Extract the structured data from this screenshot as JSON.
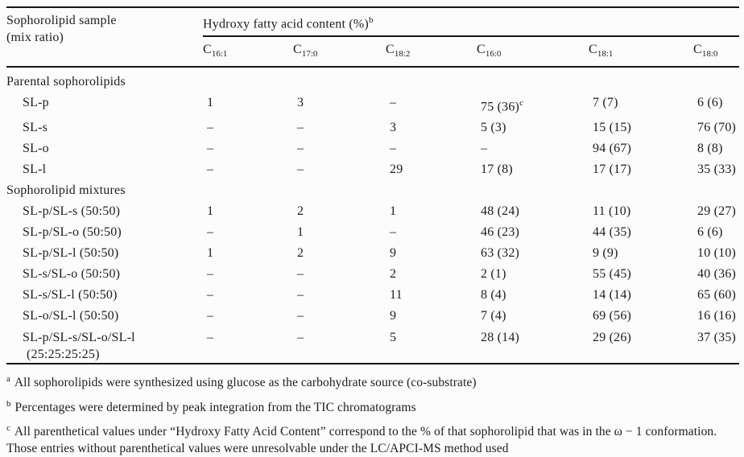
{
  "table": {
    "sample_header": [
      "Sophorolipid sample",
      "(mix ratio)"
    ],
    "group_header": "Hydroxy fatty acid content (%)",
    "group_header_sup": "b",
    "columns": [
      {
        "base": "C",
        "sub": "16:1"
      },
      {
        "base": "C",
        "sub": "17:0"
      },
      {
        "base": "C",
        "sub": "18:2"
      },
      {
        "base": "C",
        "sub": "16:0"
      },
      {
        "base": "C",
        "sub": "18:1"
      },
      {
        "base": "C",
        "sub": "18:0"
      }
    ],
    "sections": [
      {
        "label": "Parental sophorolipids",
        "rows": [
          {
            "sample": "SL-p",
            "values": [
              "1",
              "3",
              "–",
              "75 (36)^c",
              "7 (7)",
              "6 (6)"
            ]
          },
          {
            "sample": "SL-s",
            "values": [
              "–",
              "–",
              "3",
              "5 (3)",
              "15 (15)",
              "76 (70)"
            ]
          },
          {
            "sample": "SL-o",
            "values": [
              "–",
              "–",
              "–",
              "–",
              "94 (67)",
              "8 (8)"
            ]
          },
          {
            "sample": "SL-l",
            "values": [
              "–",
              "–",
              "29",
              "17 (8)",
              "17 (17)",
              "35 (33)"
            ]
          }
        ]
      },
      {
        "label": "Sophorolipid mixtures",
        "rows": [
          {
            "sample": "SL-p/SL-s (50:50)",
            "values": [
              "1",
              "2",
              "1",
              "48 (24)",
              "11 (10)",
              "29 (27)"
            ]
          },
          {
            "sample": "SL-p/SL-o (50:50)",
            "values": [
              "–",
              "1",
              "–",
              "46 (23)",
              "44 (35)",
              "6 (6)"
            ]
          },
          {
            "sample": "SL-p/SL-l (50:50)",
            "values": [
              "1",
              "2",
              "9",
              "63 (32)",
              "9 (9)",
              "10 (10)"
            ]
          },
          {
            "sample": "SL-s/SL-o (50:50)",
            "values": [
              "–",
              "–",
              "2",
              "2 (1)",
              "55 (45)",
              "40 (36)"
            ]
          },
          {
            "sample": "SL-s/SL-l (50:50)",
            "values": [
              "–",
              "–",
              "11",
              "8 (4)",
              "14 (14)",
              "65 (60)"
            ]
          },
          {
            "sample": "SL-o/SL-l (50:50)",
            "values": [
              "–",
              "–",
              "9",
              "7 (4)",
              "69 (56)",
              "16 (16)"
            ]
          },
          {
            "sample": "SL-p/SL-s/SL-o/SL-l",
            "sample_line2": "(25:25:25:25)",
            "values": [
              "–",
              "–",
              "5",
              "28 (14)",
              "29 (26)",
              "37 (35)"
            ]
          }
        ]
      }
    ]
  },
  "footnotes": [
    {
      "marker": "a",
      "text": "All sophorolipids were synthesized using glucose as the carbohydrate source (co-substrate)"
    },
    {
      "marker": "b",
      "text": "Percentages were determined by peak integration from the TIC chromatograms"
    },
    {
      "marker": "c",
      "text": "All parenthetical values under “Hydroxy Fatty Acid Content” correspond to the % of that sophorolipid that was in the ω − 1 conformation. Those entries without parenthetical values were unresolvable under the LC/APCI-MS method used"
    }
  ]
}
